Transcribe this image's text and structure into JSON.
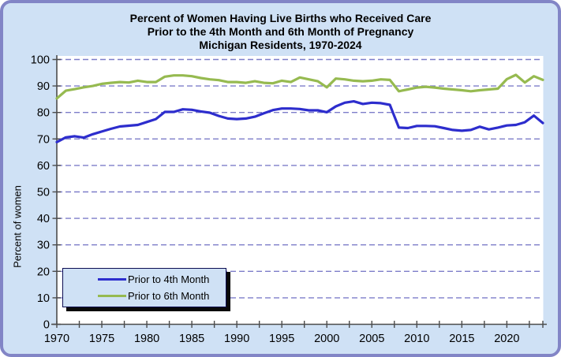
{
  "title": {
    "line1": "Percent of Women Having Live Births who Received Care",
    "line2": "Prior to the 4th Month and 6th Month of Pregnancy",
    "line3": "Michigan Residents, 1970-2024"
  },
  "y_axis": {
    "label": "Percent of women",
    "tick_values": [
      0,
      10,
      20,
      30,
      40,
      50,
      60,
      70,
      80,
      90,
      100
    ]
  },
  "x_axis": {
    "tick_labels": [
      1970,
      1975,
      1980,
      1985,
      1990,
      1995,
      2000,
      2005,
      2010,
      2015,
      2020
    ]
  },
  "legend": {
    "items": [
      {
        "label": "Prior to 4th Month",
        "color": "#2d2dcd"
      },
      {
        "label": "Prior to 6th Month",
        "color": "#96ba50"
      }
    ]
  },
  "colors": {
    "background": "#cfe1f5",
    "frame_border": "#8285c6",
    "plot_background": "#ffffff",
    "gridline": "#7d7dc9",
    "axis": "#4c4c4c",
    "series_4th_month": "#2d2dcd",
    "series_6th_month": "#96ba50",
    "legend_border": "#0d0d52",
    "legend_shadow": "#0a0a0a"
  },
  "chart_data": {
    "type": "line",
    "title": "Percent of Women Having Live Births who Received Care Prior to the 4th Month and 6th Month of Pregnancy, Michigan Residents, 1970-2024",
    "xlabel": "",
    "ylabel": "Percent of women",
    "xlim": [
      1970,
      2024
    ],
    "ylim": [
      0,
      100
    ],
    "grid": "horizontal-dashed",
    "legend_position": "lower-left",
    "minor_tick_step_years": 2.5,
    "x": [
      1970,
      1971,
      1972,
      1973,
      1974,
      1975,
      1976,
      1977,
      1978,
      1979,
      1980,
      1981,
      1982,
      1983,
      1984,
      1985,
      1986,
      1987,
      1988,
      1989,
      1990,
      1991,
      1992,
      1993,
      1994,
      1995,
      1996,
      1997,
      1998,
      1999,
      2000,
      2001,
      2002,
      2003,
      2004,
      2005,
      2006,
      2007,
      2008,
      2009,
      2010,
      2011,
      2012,
      2013,
      2014,
      2015,
      2016,
      2017,
      2018,
      2019,
      2020,
      2021,
      2022,
      2023,
      2024
    ],
    "series": [
      {
        "name": "Prior to 4th Month",
        "color": "#2d2dcd",
        "values": [
          68.8,
          70.6,
          71.0,
          70.5,
          71.8,
          72.8,
          73.8,
          74.7,
          75.0,
          75.3,
          76.4,
          77.5,
          80.2,
          80.2,
          81.2,
          81.0,
          80.4,
          79.9,
          78.7,
          77.7,
          77.5,
          77.7,
          78.4,
          79.7,
          80.9,
          81.5,
          81.5,
          81.3,
          80.8,
          80.8,
          80.1,
          82.3,
          83.7,
          84.2,
          83.2,
          83.7,
          83.5,
          82.9,
          74.3,
          74.1,
          74.9,
          74.9,
          74.8,
          74.1,
          73.4,
          73.1,
          73.4,
          74.6,
          73.6,
          74.3,
          75.1,
          75.3,
          76.3,
          78.8,
          76.0
        ]
      },
      {
        "name": "Prior to 6th Month",
        "color": "#96ba50",
        "values": [
          85.3,
          88.2,
          88.8,
          89.5,
          90.0,
          90.8,
          91.2,
          91.5,
          91.3,
          92.0,
          91.5,
          91.5,
          93.5,
          94.0,
          94.0,
          93.7,
          93.0,
          92.5,
          92.2,
          91.5,
          91.5,
          91.2,
          91.8,
          91.2,
          91.0,
          92.0,
          91.5,
          93.2,
          92.5,
          91.8,
          89.5,
          92.8,
          92.5,
          92.0,
          91.8,
          92.0,
          92.5,
          92.3,
          88.0,
          88.7,
          89.4,
          89.7,
          89.4,
          89.0,
          88.7,
          88.4,
          88.0,
          88.4,
          88.7,
          89.0,
          92.6,
          94.2,
          91.3,
          93.7,
          92.3
        ]
      }
    ]
  }
}
